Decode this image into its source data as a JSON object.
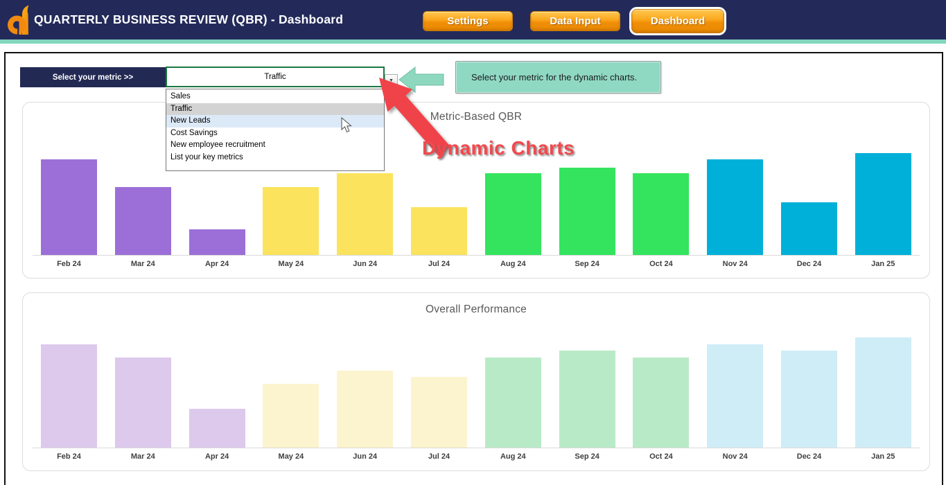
{
  "header": {
    "title": "QUARTERLY BUSINESS REVIEW (QBR) - Dashboard",
    "logo": "d-logo",
    "buttons": [
      {
        "label": "Settings",
        "active": false
      },
      {
        "label": "Data Input",
        "active": false
      },
      {
        "label": "Dashboard",
        "active": true
      }
    ]
  },
  "metric_selector": {
    "label": "Select your metric >>",
    "value": "Traffic",
    "options": [
      {
        "label": "Sales",
        "state": "normal"
      },
      {
        "label": "Traffic",
        "state": "selected"
      },
      {
        "label": "New Leads",
        "state": "hovered"
      },
      {
        "label": "Cost Savings",
        "state": "normal"
      },
      {
        "label": "New employee recruitment",
        "state": "normal"
      },
      {
        "label": "List your key metrics",
        "state": "normal"
      }
    ]
  },
  "callout": {
    "text": "Select your metric for the dynamic charts."
  },
  "annotation": {
    "label": "Dynamic Charts"
  },
  "colors": {
    "header_bg": "#232A5A",
    "accent_strip": "#82D7BD",
    "button_orange_top": "#FFC851",
    "button_orange_bottom": "#E98A02",
    "selector_label_bg": "#222A54",
    "cell_border_green": "#1A7742",
    "dropdown_selected_bg": "#D3D3D3",
    "dropdown_hover_bg": "#DCE9F7",
    "callout_teal": "#8FD9C3",
    "annotation_red": "#F2484D",
    "chart_title_gray": "#595959",
    "axis_label_gray": "#3F3F3F",
    "quarter_colors": [
      "#9C6FD8",
      "#FBE35E",
      "#35E45E",
      "#00B0D8"
    ],
    "quarter_colors_muted": [
      "#DCC9EC",
      "#FCF4CE",
      "#B9EAC7",
      "#CFEDF7"
    ]
  },
  "chart_data": [
    {
      "type": "bar",
      "title": "Metric-Based QBR",
      "categories": [
        "Feb 24",
        "Mar 24",
        "Apr 24",
        "May 24",
        "Jun 24",
        "Jul 24",
        "Aug 24",
        "Sep 24",
        "Oct 24",
        "Nov 24",
        "Dec 24",
        "Jan 25"
      ],
      "values": [
        94,
        67,
        25,
        67,
        80,
        47,
        80,
        86,
        80,
        94,
        52,
        100
      ],
      "ylim": [
        0,
        100
      ],
      "value_axis_visible": false,
      "gridlines": false,
      "legend": "none",
      "palette": "vivid_by_quarter",
      "note": "bars colored in groups of 3 months per quarter"
    },
    {
      "type": "bar",
      "title": "Overall Performance",
      "categories": [
        "Feb 24",
        "Mar 24",
        "Apr 24",
        "May 24",
        "Jun 24",
        "Jul 24",
        "Aug 24",
        "Sep 24",
        "Oct 24",
        "Nov 24",
        "Dec 24",
        "Jan 25"
      ],
      "values": [
        94,
        82,
        35,
        58,
        70,
        64,
        82,
        88,
        82,
        94,
        88,
        100
      ],
      "ylim": [
        0,
        100
      ],
      "value_axis_visible": false,
      "gridlines": false,
      "legend": "none",
      "palette": "muted_by_quarter",
      "note": "pastel version of quarter colors"
    }
  ]
}
